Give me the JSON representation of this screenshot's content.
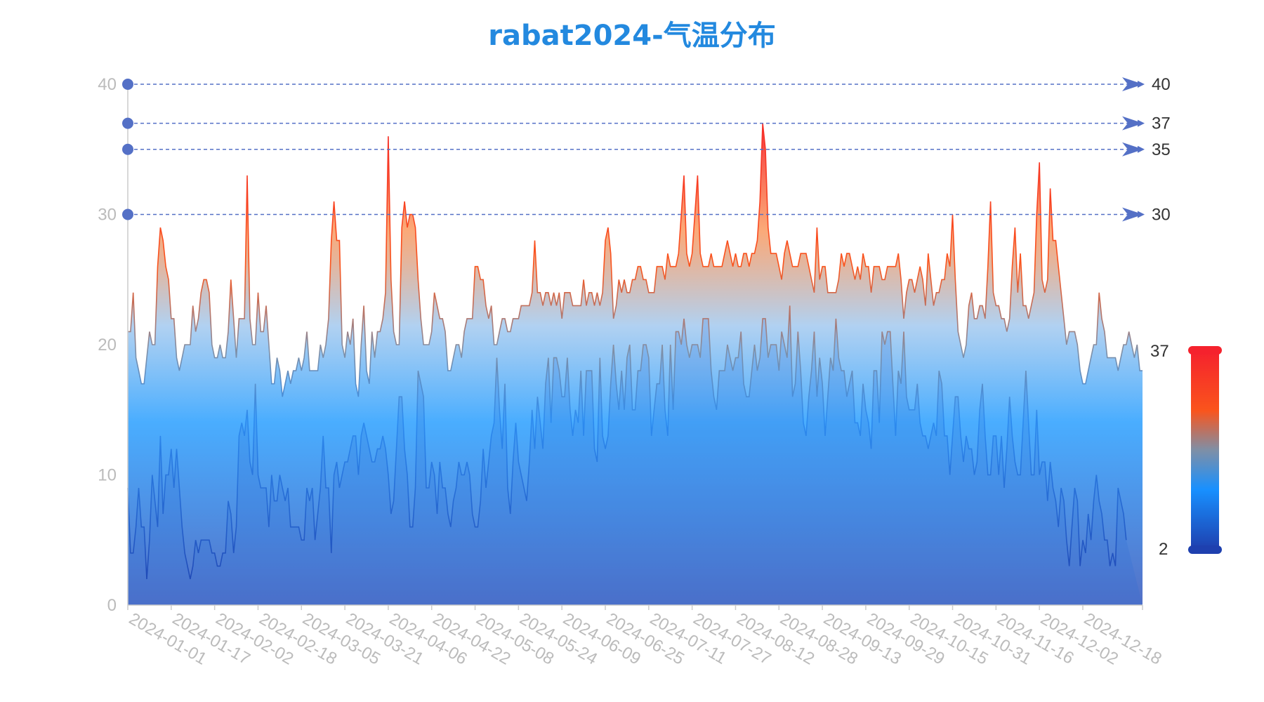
{
  "chart_data": {
    "type": "area",
    "title": "rabat2024-气温分布",
    "x_ticks": [
      "2024-01-01",
      "2024-01-17",
      "2024-02-02",
      "2024-02-18",
      "2024-03-05",
      "2024-03-21",
      "2024-04-06",
      "2024-04-22",
      "2024-05-08",
      "2024-05-24",
      "2024-06-09",
      "2024-06-25",
      "2024-07-11",
      "2024-07-27",
      "2024-08-12",
      "2024-08-28",
      "2024-09-13",
      "2024-09-29",
      "2024-10-15",
      "2024-10-31",
      "2024-11-16",
      "2024-12-02",
      "2024-12-18"
    ],
    "x_range": [
      "2024-01-01",
      "2024-12-31"
    ],
    "y_ticks": [
      0,
      10,
      20,
      30,
      40
    ],
    "ylim": [
      0,
      40
    ],
    "series": [
      {
        "values": [
          21,
          21,
          24,
          19,
          18,
          17,
          17,
          19,
          21,
          20,
          20,
          26,
          29,
          28,
          26,
          25,
          22,
          22,
          19,
          18,
          19,
          20,
          20,
          20,
          23,
          21,
          22,
          24,
          25,
          25,
          24,
          20,
          19,
          19,
          20,
          19,
          19,
          21,
          25,
          22,
          19,
          22,
          22,
          22,
          33,
          22,
          20,
          20,
          24,
          21,
          21,
          23,
          20,
          17,
          17,
          19,
          18,
          16,
          17,
          18,
          17,
          18,
          18,
          19,
          18,
          19,
          21,
          18,
          18,
          18,
          18,
          20,
          19,
          20,
          22,
          28,
          31,
          28,
          28,
          20,
          19,
          21,
          20,
          22,
          17,
          16,
          20,
          23,
          18,
          17,
          21,
          19,
          21,
          21,
          22,
          24,
          36,
          25,
          21,
          20,
          20,
          29,
          31,
          29,
          30,
          30,
          29,
          25,
          22,
          20,
          20,
          20,
          21,
          24,
          23,
          22,
          22,
          21,
          18,
          18,
          19,
          20,
          20,
          19,
          21,
          22,
          22,
          22,
          26,
          26,
          25,
          25,
          23,
          22,
          23,
          20,
          20,
          21,
          22,
          22,
          21,
          21,
          22,
          22,
          22,
          23,
          23,
          23,
          23,
          24,
          28,
          24,
          24,
          23,
          24,
          24,
          23,
          24,
          23,
          24,
          22,
          24,
          24,
          24,
          23,
          23,
          23,
          23,
          25,
          23,
          24,
          24,
          23,
          24,
          23,
          24,
          28,
          29,
          27,
          22,
          23,
          25,
          24,
          25,
          24,
          24,
          25,
          25,
          26,
          26,
          25,
          25,
          24,
          24,
          24,
          26,
          26,
          26,
          25,
          27,
          26,
          26,
          26,
          27,
          30,
          33,
          27,
          26,
          27,
          30,
          33,
          27,
          26,
          26,
          26,
          27,
          26,
          26,
          26,
          26,
          27,
          28,
          27,
          26,
          27,
          26,
          26,
          27,
          27,
          26,
          27,
          27,
          28,
          31,
          37,
          35,
          29,
          27,
          27,
          27,
          26,
          25,
          27,
          28,
          27,
          26,
          26,
          26,
          27,
          27,
          27,
          26,
          25,
          24,
          29,
          25,
          26,
          26,
          24,
          24,
          24,
          24,
          25,
          27,
          26,
          27,
          27,
          26,
          25,
          26,
          25,
          27,
          26,
          26,
          24,
          26,
          26,
          26,
          25,
          25,
          26,
          26,
          26,
          26,
          27,
          25,
          22,
          24,
          25,
          25,
          24,
          25,
          26,
          25,
          23,
          27,
          25,
          23,
          24,
          24,
          25,
          25,
          27,
          26,
          30,
          25,
          21,
          20,
          19,
          20,
          23,
          24,
          22,
          22,
          23,
          23,
          22,
          26,
          31,
          24,
          23,
          23,
          22,
          22,
          21,
          22,
          26,
          29,
          24,
          27,
          23,
          23,
          22,
          23,
          24,
          30,
          34,
          25,
          24,
          25,
          32,
          28,
          28,
          26,
          24,
          22,
          20,
          21,
          21,
          21,
          20,
          18,
          17,
          17,
          18,
          19,
          20,
          20,
          24,
          22,
          21,
          19,
          19,
          19,
          19,
          18,
          19,
          20,
          20,
          21,
          20,
          19,
          20,
          18,
          18
        ]
      },
      {
        "values": [
          9,
          4,
          4,
          6,
          9,
          6,
          6,
          2,
          5,
          10,
          8,
          6,
          13,
          7,
          10,
          10,
          12,
          9,
          12,
          9,
          6,
          4,
          3,
          2,
          3,
          5,
          4,
          5,
          5,
          5,
          5,
          4,
          4,
          3,
          3,
          4,
          4,
          8,
          7,
          4,
          6,
          13,
          14,
          13,
          15,
          11,
          10,
          17,
          10,
          9,
          9,
          9,
          6,
          10,
          8,
          8,
          10,
          9,
          8,
          9,
          6,
          6,
          6,
          6,
          5,
          5,
          9,
          8,
          9,
          5,
          7,
          9,
          13,
          9,
          9,
          4,
          10,
          11,
          9,
          10,
          11,
          11,
          12,
          13,
          13,
          10,
          13,
          14,
          13,
          12,
          11,
          11,
          12,
          12,
          13,
          12,
          10,
          7,
          8,
          12,
          16,
          16,
          12,
          10,
          6,
          6,
          9,
          18,
          17,
          16,
          9,
          9,
          11,
          10,
          7,
          11,
          9,
          9,
          7,
          6,
          8,
          9,
          11,
          10,
          10,
          11,
          10,
          7,
          6,
          6,
          8,
          12,
          9,
          11,
          13,
          14,
          19,
          15,
          12,
          17,
          9,
          7,
          11,
          14,
          11,
          10,
          9,
          8,
          11,
          15,
          12,
          16,
          14,
          12,
          17,
          19,
          14,
          19,
          19,
          18,
          16,
          16,
          19,
          15,
          13,
          15,
          14,
          18,
          13,
          18,
          18,
          18,
          12,
          11,
          19,
          13,
          12,
          13,
          17,
          20,
          17,
          15,
          18,
          15,
          19,
          20,
          15,
          15,
          18,
          18,
          20,
          20,
          19,
          13,
          15,
          17,
          17,
          20,
          15,
          13,
          20,
          15,
          21,
          21,
          20,
          22,
          20,
          19,
          20,
          20,
          20,
          19,
          22,
          22,
          22,
          18,
          16,
          15,
          18,
          18,
          18,
          20,
          19,
          18,
          19,
          19,
          21,
          17,
          16,
          16,
          18,
          20,
          18,
          19,
          22,
          22,
          19,
          20,
          20,
          20,
          18,
          21,
          20,
          19,
          23,
          16,
          17,
          21,
          18,
          14,
          13,
          16,
          18,
          21,
          16,
          19,
          17,
          13,
          16,
          19,
          18,
          22,
          19,
          18,
          18,
          16,
          17,
          18,
          14,
          14,
          13,
          17,
          15,
          14,
          12,
          18,
          18,
          14,
          21,
          20,
          21,
          21,
          17,
          13,
          18,
          17,
          21,
          16,
          15,
          15,
          15,
          17,
          14,
          13,
          13,
          12,
          13,
          14,
          13,
          18,
          17,
          13,
          13,
          10,
          13,
          16,
          16,
          13,
          11,
          13,
          12,
          12,
          10,
          11,
          15,
          17,
          13,
          10,
          10,
          13,
          13,
          10,
          13,
          9,
          12,
          16,
          13,
          11,
          10,
          10,
          14,
          18,
          14,
          10,
          10,
          15,
          10,
          11,
          11,
          8,
          11,
          9,
          8,
          6,
          9,
          8,
          5,
          3,
          6,
          9,
          8,
          3,
          5,
          4,
          7,
          5,
          8,
          10,
          8,
          7,
          5,
          5,
          3,
          4,
          3,
          9,
          8,
          7,
          5
        ]
      }
    ],
    "reference_lines": [
      {
        "value": 40,
        "label": "40"
      },
      {
        "value": 37,
        "label": "37"
      },
      {
        "value": 35,
        "label": "35"
      },
      {
        "value": 30,
        "label": "30"
      }
    ],
    "visual_map": {
      "min_label": "2",
      "max_label": "37",
      "min": 2,
      "max": 37
    },
    "colors": {
      "title": "#2389df",
      "ref_line": "#5470c6",
      "gradient": [
        "#f5222d",
        "#fa541c",
        "#91cc75",
        "#1890ff",
        "#1e40af"
      ]
    }
  }
}
